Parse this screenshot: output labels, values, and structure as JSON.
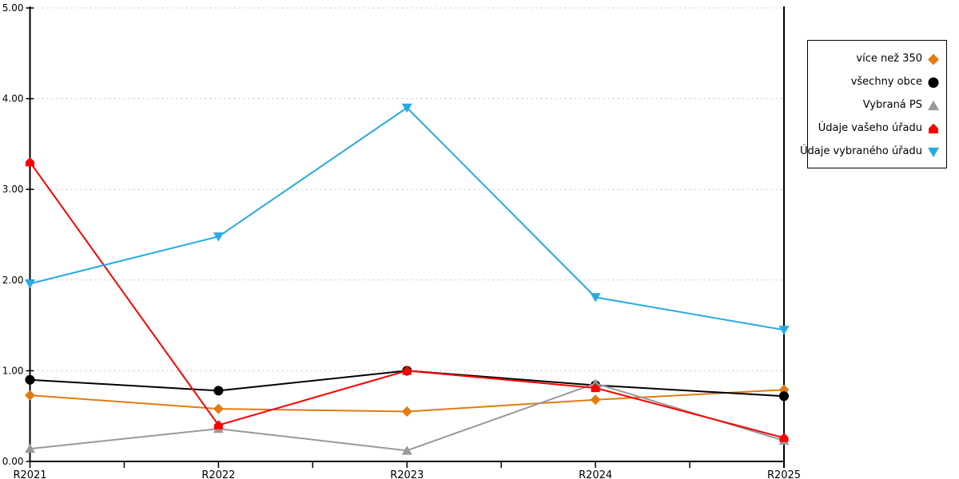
{
  "page": {
    "background": "#ffffff",
    "title": ""
  },
  "chart_data": {
    "type": "line",
    "title": "",
    "xlabel": "",
    "ylabel": "",
    "categories": [
      "R2021",
      "R2022",
      "R2023",
      "R2024",
      "R2025"
    ],
    "y_axis": {
      "min": 0,
      "max": 5,
      "tick_step": 1,
      "tick_labels": [
        "0.00",
        "1.00",
        "2.00",
        "3.00",
        "4.00",
        "5.00"
      ]
    },
    "grid": {
      "show": true,
      "color": "#c3c3c3",
      "dash": "2 4"
    },
    "axis_color": "#000000",
    "series": [
      {
        "name": "více než 350",
        "color": "#e07c10",
        "marker": "diamond",
        "values": [
          0.73,
          0.58,
          0.55,
          0.68,
          0.79
        ]
      },
      {
        "name": "všechny obce",
        "color": "#000000",
        "marker": "circle",
        "values": [
          0.9,
          0.78,
          1.0,
          0.84,
          0.72
        ]
      },
      {
        "name": "Vybraná PS",
        "color": "#999999",
        "marker": "triangle-up",
        "values": [
          0.14,
          0.36,
          0.12,
          0.86,
          0.23
        ]
      },
      {
        "name": "Údaje vašeho úřadu",
        "color": "#ff0000",
        "marker": "pentagon",
        "values": [
          3.3,
          0.4,
          1.0,
          0.81,
          0.26
        ]
      },
      {
        "name": "Údaje vybraného úřadu",
        "color": "#27aae1",
        "marker": "triangle-down",
        "values": [
          1.96,
          2.48,
          3.9,
          1.81,
          1.45
        ]
      }
    ],
    "legend": {
      "position": "right"
    }
  }
}
